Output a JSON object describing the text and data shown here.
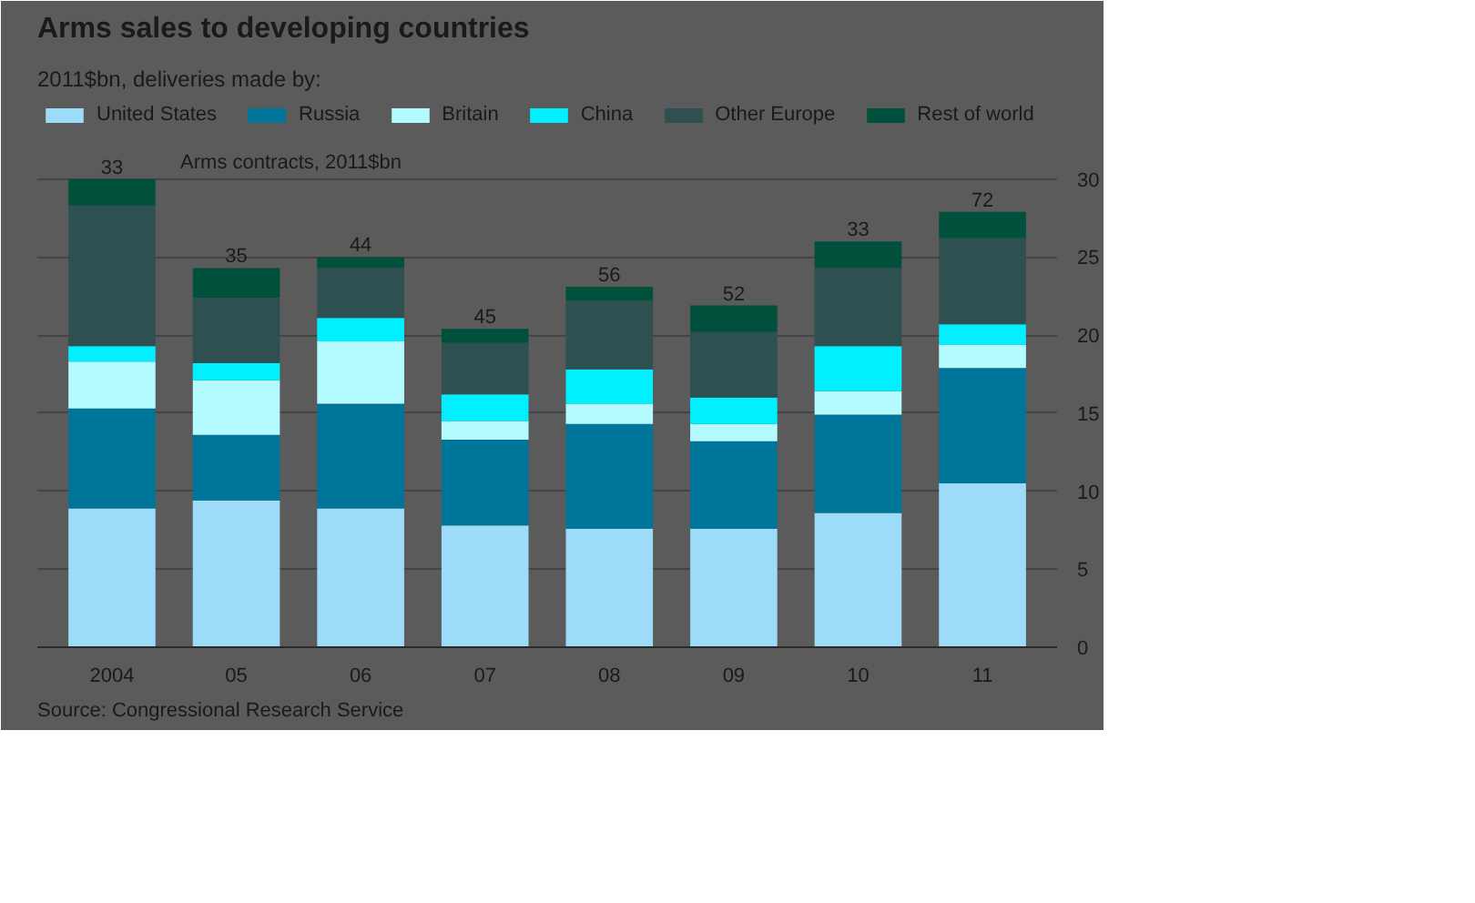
{
  "chart_data": {
    "type": "bar",
    "stacked": true,
    "title": "Arms sales to developing countries",
    "subtitle": "2011$bn, deliveries made by:",
    "categories": [
      "2004",
      "05",
      "06",
      "07",
      "08",
      "09",
      "10",
      "11"
    ],
    "series": [
      {
        "name": "United States",
        "color": "#9ddcf9",
        "values": [
          8.9,
          9.4,
          8.9,
          7.8,
          7.6,
          7.6,
          8.6,
          10.5
        ]
      },
      {
        "name": "Russia",
        "color": "#00759a",
        "values": [
          6.4,
          4.2,
          6.7,
          5.5,
          6.7,
          5.6,
          6.3,
          7.4
        ]
      },
      {
        "name": "Britain",
        "color": "#b3fbff",
        "values": [
          3.0,
          3.5,
          4.0,
          1.2,
          1.3,
          1.1,
          1.5,
          1.5
        ]
      },
      {
        "name": "China",
        "color": "#00f0ff",
        "values": [
          1.0,
          1.1,
          1.5,
          1.7,
          2.2,
          1.7,
          2.9,
          1.3
        ]
      },
      {
        "name": "Other Europe",
        "color": "#2e5050",
        "values": [
          9.0,
          4.2,
          3.2,
          3.3,
          4.4,
          4.2,
          5.0,
          5.5
        ]
      },
      {
        "name": "Rest of world",
        "color": "#00503c",
        "values": [
          1.7,
          1.9,
          0.7,
          0.9,
          0.9,
          1.7,
          1.7,
          1.7
        ]
      }
    ],
    "ylim": [
      0,
      35
    ],
    "yticks": [
      0,
      5,
      10,
      15,
      20,
      25,
      30
    ],
    "grid": "y",
    "legend": "top",
    "annotations": [
      "Arms contracts, 2011$bn",
      {
        "text": "33",
        "x": "2004",
        "y": 30.0
      },
      {
        "text": "35",
        "x": "05",
        "y": 24.3
      },
      {
        "text": "44",
        "x": "06",
        "y": 25.0
      },
      {
        "text": "45",
        "x": "07",
        "y": 20.4
      },
      {
        "text": "56",
        "x": "08",
        "y": 23.1
      },
      {
        "text": "52",
        "x": "09",
        "y": 21.9
      },
      {
        "text": "33",
        "x": "10",
        "y": 26.0
      },
      {
        "text": "72",
        "x": "11",
        "y": 27.9
      },
      "Source: Congressional Research Service"
    ]
  }
}
